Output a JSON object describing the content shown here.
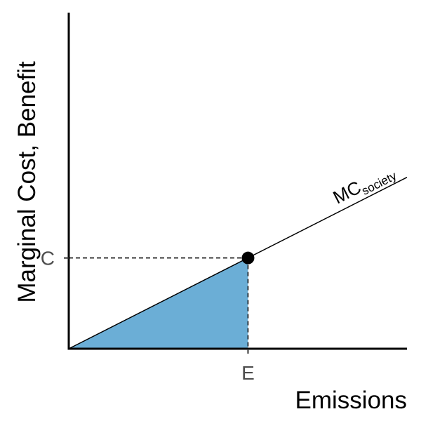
{
  "chart_data": {
    "type": "line",
    "xlabel": "Emissions",
    "ylabel": "Marginal Cost, Benefit",
    "xlim": [
      0,
      1
    ],
    "ylim": [
      0,
      1
    ],
    "grid": false,
    "legend": "none",
    "series": [
      {
        "label_main": "MC",
        "label_sub": "society",
        "color": "#000000",
        "x": [
          0,
          1
        ],
        "y": [
          0,
          0.51
        ]
      }
    ],
    "point": {
      "x": 0.53,
      "y": 0.27,
      "color": "#000000"
    },
    "x_ticks": [
      {
        "value": 0.53,
        "label": "E"
      }
    ],
    "y_ticks": [
      {
        "value": 0.27,
        "label": "C"
      }
    ],
    "shaded_area": {
      "color": "#6baed6",
      "polygon": [
        [
          0,
          0
        ],
        [
          0.53,
          0.27
        ],
        [
          0.53,
          0
        ]
      ]
    },
    "label_at_x": 0.88
  }
}
